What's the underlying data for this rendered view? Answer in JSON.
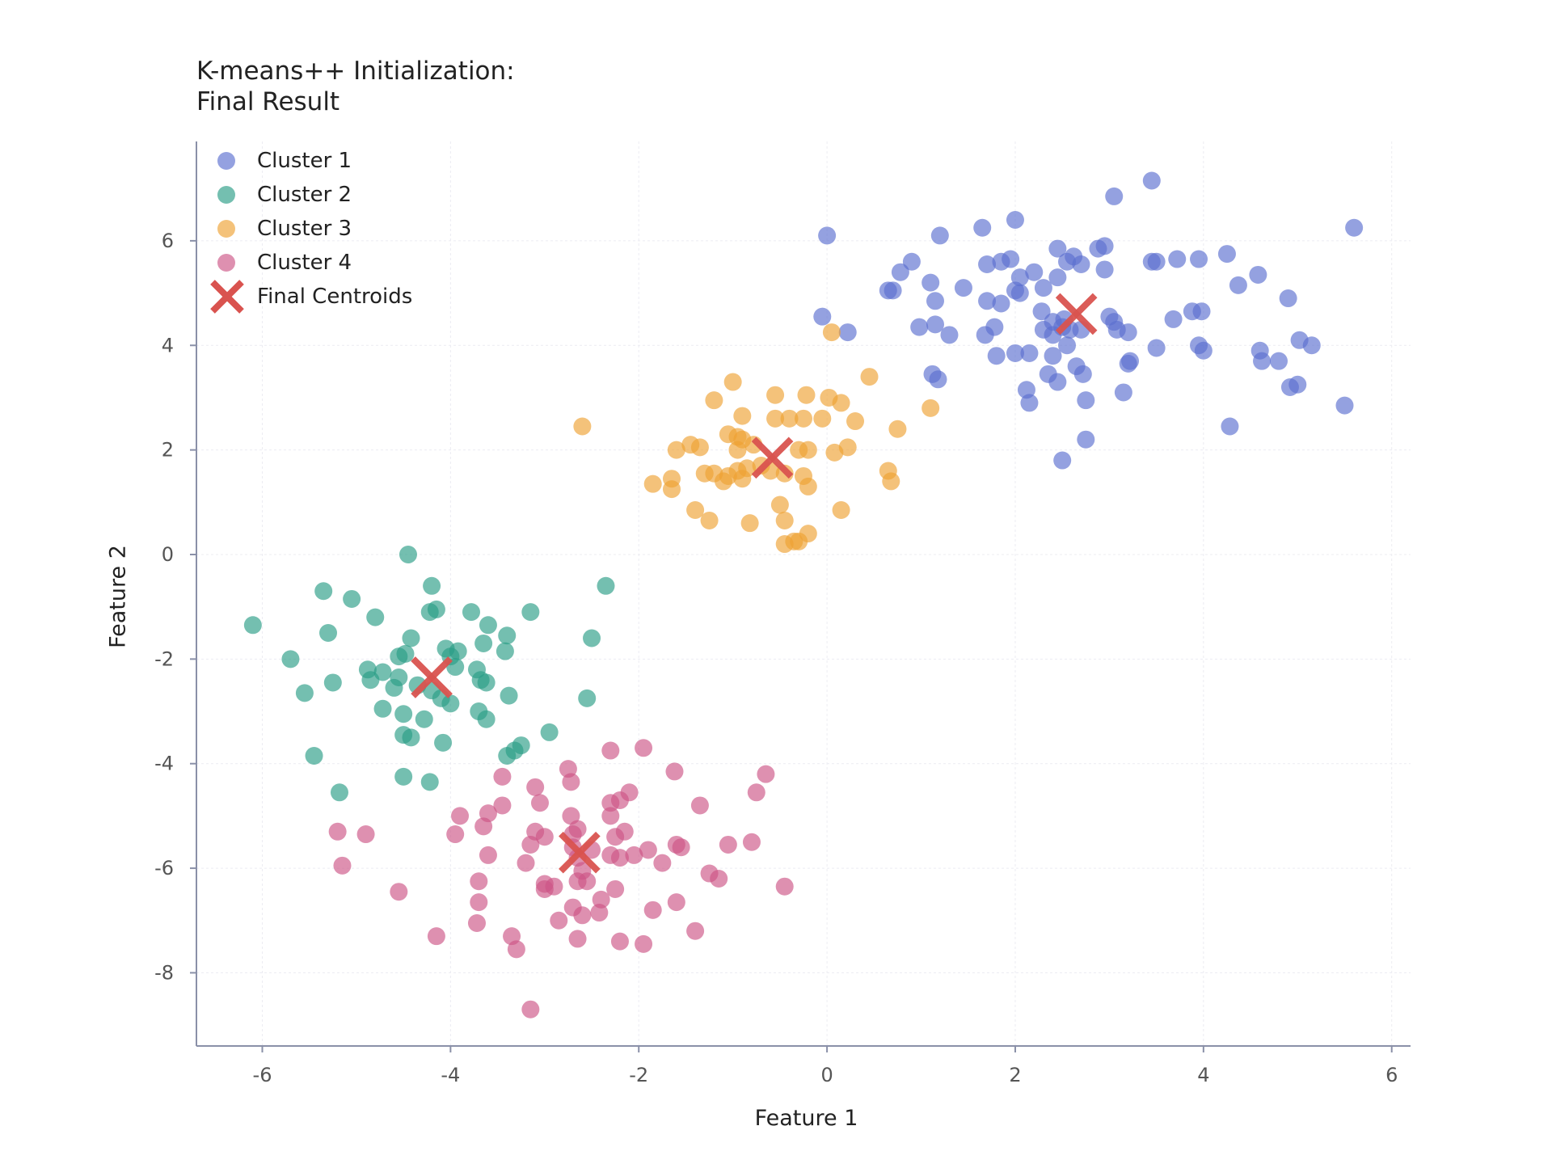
{
  "chart_data": {
    "type": "scatter",
    "title": [
      "K-means++ Initialization:",
      "Final Result"
    ],
    "xlabel": "Feature 1",
    "ylabel": "Feature 2",
    "xlim": [
      -6.7,
      6.2
    ],
    "ylim": [
      -9.4,
      7.9
    ],
    "xticks": [
      -6,
      -4,
      -2,
      0,
      2,
      4,
      6
    ],
    "yticks": [
      -8,
      -6,
      -4,
      -2,
      0,
      2,
      4,
      6
    ],
    "xtick_labels": [
      "-6",
      "-4",
      "-2",
      "0",
      "2",
      "4",
      "6"
    ],
    "ytick_labels": [
      "-8",
      "-6",
      "-4",
      "-2",
      "0",
      "2",
      "4",
      "6"
    ],
    "grid": true,
    "legend_position": "top-left",
    "series": [
      {
        "name": "Cluster 1",
        "color": "#5b6fd0",
        "points": [
          [
            0.0,
            6.1
          ],
          [
            1.2,
            6.1
          ],
          [
            1.65,
            6.25
          ],
          [
            2.0,
            6.4
          ],
          [
            3.05,
            6.85
          ],
          [
            3.45,
            7.15
          ],
          [
            5.6,
            6.25
          ],
          [
            0.9,
            5.6
          ],
          [
            0.78,
            5.4
          ],
          [
            1.1,
            5.2
          ],
          [
            0.65,
            5.05
          ],
          [
            0.7,
            5.05
          ],
          [
            1.45,
            5.1
          ],
          [
            1.15,
            4.85
          ],
          [
            1.7,
            5.55
          ],
          [
            1.85,
            5.6
          ],
          [
            1.95,
            5.65
          ],
          [
            2.05,
            5.3
          ],
          [
            2.2,
            5.4
          ],
          [
            2.45,
            5.85
          ],
          [
            2.55,
            5.6
          ],
          [
            2.62,
            5.7
          ],
          [
            2.7,
            5.55
          ],
          [
            2.88,
            5.85
          ],
          [
            2.95,
            5.9
          ],
          [
            2.95,
            5.45
          ],
          [
            3.45,
            5.6
          ],
          [
            3.5,
            5.6
          ],
          [
            3.72,
            5.65
          ],
          [
            3.95,
            5.65
          ],
          [
            4.25,
            5.75
          ],
          [
            4.58,
            5.35
          ],
          [
            4.37,
            5.15
          ],
          [
            4.9,
            4.9
          ],
          [
            2.45,
            5.3
          ],
          [
            2.3,
            5.1
          ],
          [
            2.05,
            5.0
          ],
          [
            2.0,
            5.05
          ],
          [
            1.7,
            4.85
          ],
          [
            1.85,
            4.8
          ],
          [
            -0.05,
            4.55
          ],
          [
            0.22,
            4.25
          ],
          [
            0.98,
            4.35
          ],
          [
            1.15,
            4.4
          ],
          [
            1.3,
            4.2
          ],
          [
            1.68,
            4.2
          ],
          [
            1.78,
            4.35
          ],
          [
            2.28,
            4.65
          ],
          [
            2.4,
            4.45
          ],
          [
            2.52,
            4.5
          ],
          [
            2.3,
            4.3
          ],
          [
            2.4,
            4.2
          ],
          [
            2.5,
            4.35
          ],
          [
            2.58,
            4.3
          ],
          [
            2.7,
            4.3
          ],
          [
            3.0,
            4.55
          ],
          [
            3.05,
            4.45
          ],
          [
            3.08,
            4.3
          ],
          [
            3.2,
            4.25
          ],
          [
            3.68,
            4.5
          ],
          [
            3.88,
            4.65
          ],
          [
            3.98,
            4.65
          ],
          [
            1.8,
            3.8
          ],
          [
            2.0,
            3.85
          ],
          [
            2.15,
            3.85
          ],
          [
            2.4,
            3.8
          ],
          [
            2.55,
            4.0
          ],
          [
            2.65,
            3.6
          ],
          [
            2.72,
            3.45
          ],
          [
            3.2,
            3.65
          ],
          [
            3.22,
            3.7
          ],
          [
            3.5,
            3.95
          ],
          [
            3.95,
            4.0
          ],
          [
            4.0,
            3.9
          ],
          [
            4.6,
            3.9
          ],
          [
            4.62,
            3.7
          ],
          [
            4.8,
            3.7
          ],
          [
            5.02,
            4.1
          ],
          [
            5.15,
            4.0
          ],
          [
            1.12,
            3.45
          ],
          [
            1.18,
            3.35
          ],
          [
            2.35,
            3.45
          ],
          [
            2.45,
            3.3
          ],
          [
            2.12,
            3.15
          ],
          [
            2.15,
            2.9
          ],
          [
            2.75,
            2.95
          ],
          [
            3.15,
            3.1
          ],
          [
            4.92,
            3.2
          ],
          [
            5.0,
            3.25
          ],
          [
            5.5,
            2.85
          ],
          [
            4.28,
            2.45
          ],
          [
            2.75,
            2.2
          ],
          [
            2.5,
            1.8
          ]
        ]
      },
      {
        "name": "Cluster 2",
        "color": "#2a9d85",
        "points": [
          [
            -4.45,
            0.0
          ],
          [
            -4.2,
            -0.6
          ],
          [
            -2.35,
            -0.6
          ],
          [
            -5.35,
            -0.7
          ],
          [
            -5.05,
            -0.85
          ],
          [
            -4.22,
            -1.1
          ],
          [
            -4.15,
            -1.05
          ],
          [
            -3.78,
            -1.1
          ],
          [
            -3.15,
            -1.1
          ],
          [
            -4.8,
            -1.2
          ],
          [
            -6.1,
            -1.35
          ],
          [
            -5.3,
            -1.5
          ],
          [
            -3.6,
            -1.35
          ],
          [
            -3.4,
            -1.55
          ],
          [
            -4.42,
            -1.6
          ],
          [
            -2.5,
            -1.6
          ],
          [
            -3.65,
            -1.7
          ],
          [
            -4.05,
            -1.8
          ],
          [
            -3.92,
            -1.85
          ],
          [
            -4.0,
            -1.95
          ],
          [
            -3.42,
            -1.85
          ],
          [
            -4.55,
            -1.95
          ],
          [
            -4.48,
            -1.9
          ],
          [
            -5.7,
            -2.0
          ],
          [
            -4.88,
            -2.2
          ],
          [
            -3.95,
            -2.15
          ],
          [
            -3.72,
            -2.2
          ],
          [
            -4.72,
            -2.25
          ],
          [
            -4.85,
            -2.4
          ],
          [
            -4.55,
            -2.35
          ],
          [
            -4.6,
            -2.55
          ],
          [
            -4.35,
            -2.5
          ],
          [
            -3.68,
            -2.4
          ],
          [
            -3.62,
            -2.45
          ],
          [
            -5.25,
            -2.45
          ],
          [
            -5.55,
            -2.65
          ],
          [
            -3.38,
            -2.7
          ],
          [
            -2.55,
            -2.75
          ],
          [
            -4.2,
            -2.6
          ],
          [
            -4.1,
            -2.75
          ],
          [
            -4.0,
            -2.85
          ],
          [
            -4.72,
            -2.95
          ],
          [
            -4.5,
            -3.05
          ],
          [
            -4.28,
            -3.15
          ],
          [
            -3.7,
            -3.0
          ],
          [
            -3.62,
            -3.15
          ],
          [
            -2.95,
            -3.4
          ],
          [
            -4.5,
            -3.45
          ],
          [
            -4.42,
            -3.5
          ],
          [
            -4.08,
            -3.6
          ],
          [
            -3.25,
            -3.65
          ],
          [
            -3.32,
            -3.75
          ],
          [
            -3.4,
            -3.85
          ],
          [
            -5.45,
            -3.85
          ],
          [
            -4.5,
            -4.25
          ],
          [
            -4.22,
            -4.35
          ],
          [
            -5.18,
            -4.55
          ]
        ]
      },
      {
        "name": "Cluster 3",
        "color": "#eea233",
        "points": [
          [
            -2.6,
            2.45
          ],
          [
            0.05,
            4.25
          ],
          [
            0.45,
            3.4
          ],
          [
            -1.0,
            3.3
          ],
          [
            -0.55,
            3.05
          ],
          [
            -0.22,
            3.05
          ],
          [
            0.02,
            3.0
          ],
          [
            0.15,
            2.9
          ],
          [
            -1.2,
            2.95
          ],
          [
            -0.9,
            2.65
          ],
          [
            -0.55,
            2.6
          ],
          [
            -0.4,
            2.6
          ],
          [
            -0.25,
            2.6
          ],
          [
            -0.05,
            2.6
          ],
          [
            0.3,
            2.55
          ],
          [
            1.1,
            2.8
          ],
          [
            -1.45,
            2.1
          ],
          [
            -1.35,
            2.05
          ],
          [
            -1.05,
            2.3
          ],
          [
            -0.95,
            2.25
          ],
          [
            -0.9,
            2.2
          ],
          [
            -0.95,
            2.0
          ],
          [
            -0.78,
            2.1
          ],
          [
            -0.3,
            2.0
          ],
          [
            -0.2,
            2.0
          ],
          [
            0.08,
            1.95
          ],
          [
            0.22,
            2.05
          ],
          [
            0.75,
            2.4
          ],
          [
            -1.6,
            2.0
          ],
          [
            -1.2,
            1.55
          ],
          [
            -1.05,
            1.5
          ],
          [
            -0.95,
            1.6
          ],
          [
            -0.85,
            1.65
          ],
          [
            -0.7,
            1.7
          ],
          [
            -0.6,
            1.6
          ],
          [
            -0.45,
            1.55
          ],
          [
            -1.1,
            1.4
          ],
          [
            -0.9,
            1.45
          ],
          [
            -1.3,
            1.55
          ],
          [
            -1.65,
            1.45
          ],
          [
            -1.85,
            1.35
          ],
          [
            -1.65,
            1.25
          ],
          [
            0.65,
            1.6
          ],
          [
            0.68,
            1.4
          ],
          [
            -0.25,
            1.5
          ],
          [
            -0.2,
            1.3
          ],
          [
            -0.5,
            0.95
          ],
          [
            -1.4,
            0.85
          ],
          [
            -1.25,
            0.65
          ],
          [
            -0.82,
            0.6
          ],
          [
            -0.45,
            0.65
          ],
          [
            0.15,
            0.85
          ],
          [
            -0.45,
            0.2
          ],
          [
            -0.35,
            0.25
          ],
          [
            -0.3,
            0.25
          ],
          [
            -0.2,
            0.4
          ]
        ]
      },
      {
        "name": "Cluster 4",
        "color": "#cc5585",
        "points": [
          [
            -2.3,
            -3.75
          ],
          [
            -1.95,
            -3.7
          ],
          [
            -2.75,
            -4.1
          ],
          [
            -2.72,
            -4.35
          ],
          [
            -3.45,
            -4.25
          ],
          [
            -3.1,
            -4.45
          ],
          [
            -1.62,
            -4.15
          ],
          [
            -0.65,
            -4.2
          ],
          [
            -0.75,
            -4.55
          ],
          [
            -3.05,
            -4.75
          ],
          [
            -2.1,
            -4.55
          ],
          [
            -2.2,
            -4.7
          ],
          [
            -2.3,
            -4.75
          ],
          [
            -1.35,
            -4.8
          ],
          [
            -3.6,
            -4.95
          ],
          [
            -3.45,
            -4.8
          ],
          [
            -3.9,
            -5.0
          ],
          [
            -3.65,
            -5.2
          ],
          [
            -2.72,
            -5.0
          ],
          [
            -2.65,
            -5.25
          ],
          [
            -2.3,
            -5.0
          ],
          [
            -3.1,
            -5.3
          ],
          [
            -2.7,
            -5.35
          ],
          [
            -3.0,
            -5.4
          ],
          [
            -2.15,
            -5.3
          ],
          [
            -2.25,
            -5.4
          ],
          [
            -3.95,
            -5.35
          ],
          [
            -5.2,
            -5.3
          ],
          [
            -4.9,
            -5.35
          ],
          [
            -1.05,
            -5.55
          ],
          [
            -0.8,
            -5.5
          ],
          [
            -1.6,
            -5.55
          ],
          [
            -1.55,
            -5.6
          ],
          [
            -2.7,
            -5.6
          ],
          [
            -2.5,
            -5.65
          ],
          [
            -3.15,
            -5.55
          ],
          [
            -2.65,
            -5.8
          ],
          [
            -2.3,
            -5.75
          ],
          [
            -2.2,
            -5.8
          ],
          [
            -2.05,
            -5.75
          ],
          [
            -1.9,
            -5.65
          ],
          [
            -1.75,
            -5.9
          ],
          [
            -3.6,
            -5.75
          ],
          [
            -3.2,
            -5.9
          ],
          [
            -5.15,
            -5.95
          ],
          [
            -2.6,
            -6.05
          ],
          [
            -2.55,
            -6.25
          ],
          [
            -2.65,
            -6.25
          ],
          [
            -1.25,
            -6.1
          ],
          [
            -1.15,
            -6.2
          ],
          [
            -3.0,
            -6.3
          ],
          [
            -2.9,
            -6.35
          ],
          [
            -3.0,
            -6.4
          ],
          [
            -3.7,
            -6.25
          ],
          [
            -4.55,
            -6.45
          ],
          [
            -2.25,
            -6.4
          ],
          [
            -0.45,
            -6.35
          ],
          [
            -2.4,
            -6.6
          ],
          [
            -2.7,
            -6.75
          ],
          [
            -3.7,
            -6.65
          ],
          [
            -1.6,
            -6.65
          ],
          [
            -1.85,
            -6.8
          ],
          [
            -2.6,
            -6.9
          ],
          [
            -2.42,
            -6.85
          ],
          [
            -2.85,
            -7.0
          ],
          [
            -3.72,
            -7.05
          ],
          [
            -1.4,
            -7.2
          ],
          [
            -2.65,
            -7.35
          ],
          [
            -2.2,
            -7.4
          ],
          [
            -1.95,
            -7.45
          ],
          [
            -4.15,
            -7.3
          ],
          [
            -3.35,
            -7.3
          ],
          [
            -3.3,
            -7.55
          ],
          [
            -3.15,
            -8.7
          ]
        ]
      }
    ],
    "centroids": {
      "name": "Final Centroids",
      "color": "#d9534f",
      "points": [
        [
          2.65,
          4.6
        ],
        [
          -0.58,
          1.85
        ],
        [
          -4.2,
          -2.35
        ],
        [
          -2.63,
          -5.7
        ]
      ]
    }
  }
}
